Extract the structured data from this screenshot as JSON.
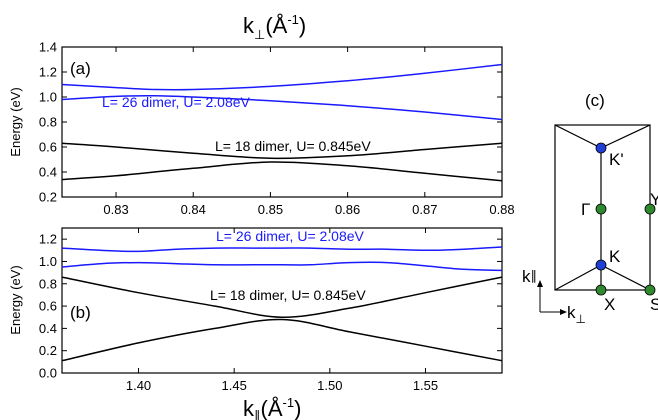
{
  "colors": {
    "black": "#000000",
    "blue": "#1a1aff",
    "node_blue": "#1f3fd6",
    "node_green": "#2f8a2f"
  },
  "top_axis_title": {
    "prefix": "k",
    "sub": "⊥",
    "unit": "(Å",
    "sup": "-1",
    "close": ")"
  },
  "bottom_axis_title": {
    "prefix": "k",
    "sub": "∥",
    "unit": "(Å",
    "sup": "-1",
    "close": ")"
  },
  "chart_data": [
    {
      "type": "line",
      "panel_label": "(a)",
      "ylabel": "Energy (eV)",
      "xlim": [
        0.823,
        0.88
      ],
      "ylim": [
        0.2,
        1.4
      ],
      "xticks": [
        "0.83",
        "0.84",
        "0.85",
        "0.86",
        "0.87",
        "0.88"
      ],
      "yticks": [
        "0.2",
        "0.4",
        "0.6",
        "0.8",
        "1.0",
        "1.2",
        "1.4"
      ],
      "annotations": [
        {
          "text": "L= 26 dimer, U= 2.08eV",
          "color": "blue"
        },
        {
          "text": "L= 18 dimer, U= 0.845eV",
          "color": "black"
        }
      ],
      "series": [
        {
          "color": "blue",
          "x": [
            0.823,
            0.83,
            0.835,
            0.84,
            0.85,
            0.86,
            0.87,
            0.88
          ],
          "y": [
            1.1,
            1.075,
            1.06,
            1.06,
            1.085,
            1.13,
            1.19,
            1.26
          ]
        },
        {
          "color": "blue",
          "x": [
            0.823,
            0.83,
            0.835,
            0.84,
            0.85,
            0.86,
            0.87,
            0.88
          ],
          "y": [
            0.98,
            1.005,
            1.01,
            1.0,
            0.97,
            0.93,
            0.88,
            0.82
          ]
        },
        {
          "color": "black",
          "x": [
            0.823,
            0.83,
            0.84,
            0.85,
            0.86,
            0.87,
            0.88
          ],
          "y": [
            0.63,
            0.6,
            0.55,
            0.51,
            0.53,
            0.58,
            0.63
          ]
        },
        {
          "color": "black",
          "x": [
            0.823,
            0.83,
            0.84,
            0.85,
            0.86,
            0.87,
            0.88
          ],
          "y": [
            0.34,
            0.37,
            0.43,
            0.48,
            0.45,
            0.39,
            0.33
          ]
        }
      ]
    },
    {
      "type": "line",
      "panel_label": "(b)",
      "ylabel": "Energy (eV)",
      "xlim": [
        1.36,
        1.59
      ],
      "ylim": [
        0.0,
        1.3
      ],
      "xticks": [
        "1.40",
        "1.45",
        "1.50",
        "1.55"
      ],
      "yticks": [
        "0.0",
        "0.2",
        "0.4",
        "0.6",
        "0.8",
        "1.0",
        "1.2"
      ],
      "annotations": [
        {
          "text": "L= 26 dimer, U= 2.08eV",
          "color": "blue"
        },
        {
          "text": "L= 18 dimer, U= 0.845eV",
          "color": "black"
        }
      ],
      "series": [
        {
          "color": "blue",
          "x": [
            1.36,
            1.38,
            1.4,
            1.42,
            1.44,
            1.46,
            1.475,
            1.49,
            1.51,
            1.53,
            1.55,
            1.57,
            1.59
          ],
          "y": [
            1.12,
            1.1,
            1.09,
            1.11,
            1.12,
            1.12,
            1.12,
            1.12,
            1.11,
            1.11,
            1.1,
            1.11,
            1.13
          ]
        },
        {
          "color": "blue",
          "x": [
            1.36,
            1.38,
            1.4,
            1.42,
            1.44,
            1.46,
            1.475,
            1.49,
            1.51,
            1.53,
            1.55,
            1.57,
            1.59
          ],
          "y": [
            0.95,
            0.98,
            0.99,
            0.98,
            0.97,
            0.97,
            0.97,
            0.97,
            0.99,
            0.99,
            0.96,
            0.93,
            0.92
          ]
        },
        {
          "color": "black",
          "x": [
            1.36,
            1.4,
            1.44,
            1.475,
            1.51,
            1.55,
            1.59
          ],
          "y": [
            0.86,
            0.72,
            0.6,
            0.5,
            0.58,
            0.72,
            0.86
          ]
        },
        {
          "color": "black",
          "x": [
            1.36,
            1.4,
            1.44,
            1.475,
            1.51,
            1.55,
            1.59
          ],
          "y": [
            0.11,
            0.27,
            0.4,
            0.48,
            0.37,
            0.24,
            0.11
          ]
        }
      ]
    }
  ],
  "brillouin_zone": {
    "panel_label": "(c)",
    "point_labels": {
      "k_prime": "K'",
      "gamma": "Γ",
      "k": "K",
      "x": "X",
      "s": "S",
      "y": "Y"
    },
    "axis_labels": {
      "k_par": "k",
      "k_par_sub": "∥",
      "k_perp": "k",
      "k_perp_sub": "⊥"
    }
  }
}
